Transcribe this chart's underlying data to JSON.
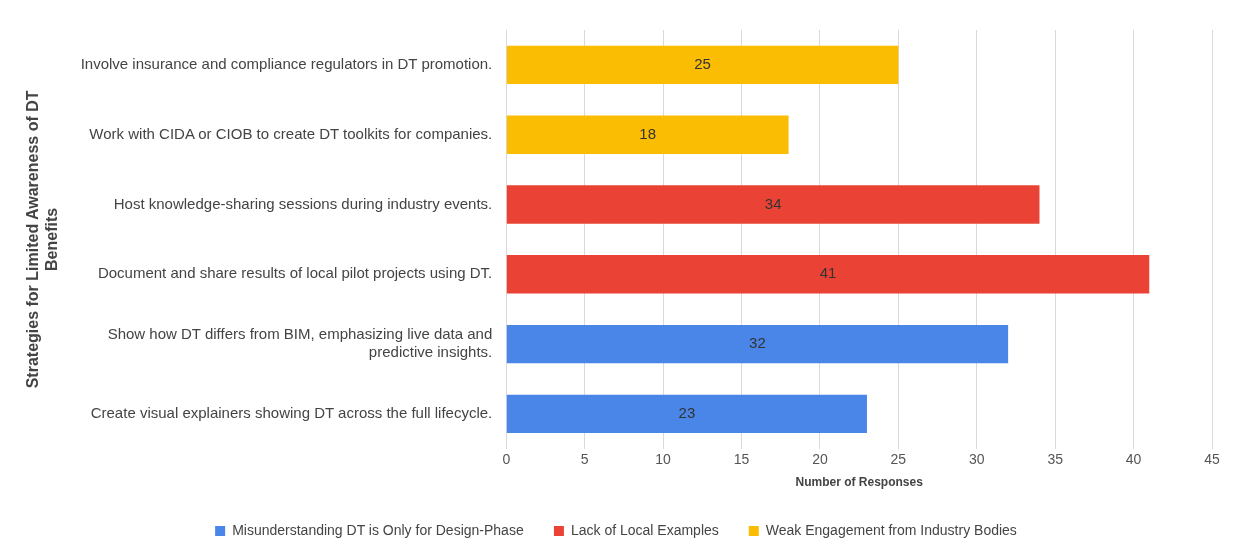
{
  "chart_data": {
    "type": "bar",
    "orientation": "horizontal",
    "stacked": true,
    "xlabel": "Number of Responses",
    "ylabel": "Strategies for Limited Awareness of DT Benefits",
    "categories": [
      "Involve insurance and compliance regulators in DT promotion.",
      "Work with CIDA or CIOB to create DT toolkits for companies.",
      "Host knowledge-sharing sessions during industry events.",
      "Document and share results of local pilot projects using DT.",
      "Show how DT differs from BIM, emphasizing live data and predictive insights.",
      "Create visual explainers showing DT across the full lifecycle."
    ],
    "series": [
      {
        "name": "Misunderstanding DT is Only for Design-Phase",
        "color": "#4a86e8",
        "values": [
          null,
          null,
          null,
          null,
          32,
          23
        ]
      },
      {
        "name": "Lack of Local Examples",
        "color": "#ea4335",
        "values": [
          null,
          null,
          34,
          41,
          null,
          null
        ]
      },
      {
        "name": "Weak Engagement from Industry Bodies",
        "color": "#fbbc04",
        "values": [
          25,
          18,
          null,
          null,
          null,
          null
        ]
      }
    ],
    "xlim": [
      0,
      45
    ],
    "xticks": [
      0,
      5,
      10,
      15,
      20,
      25,
      30,
      35,
      40,
      45
    ],
    "grid": "x",
    "legend": "bottom",
    "data_labels": true
  }
}
